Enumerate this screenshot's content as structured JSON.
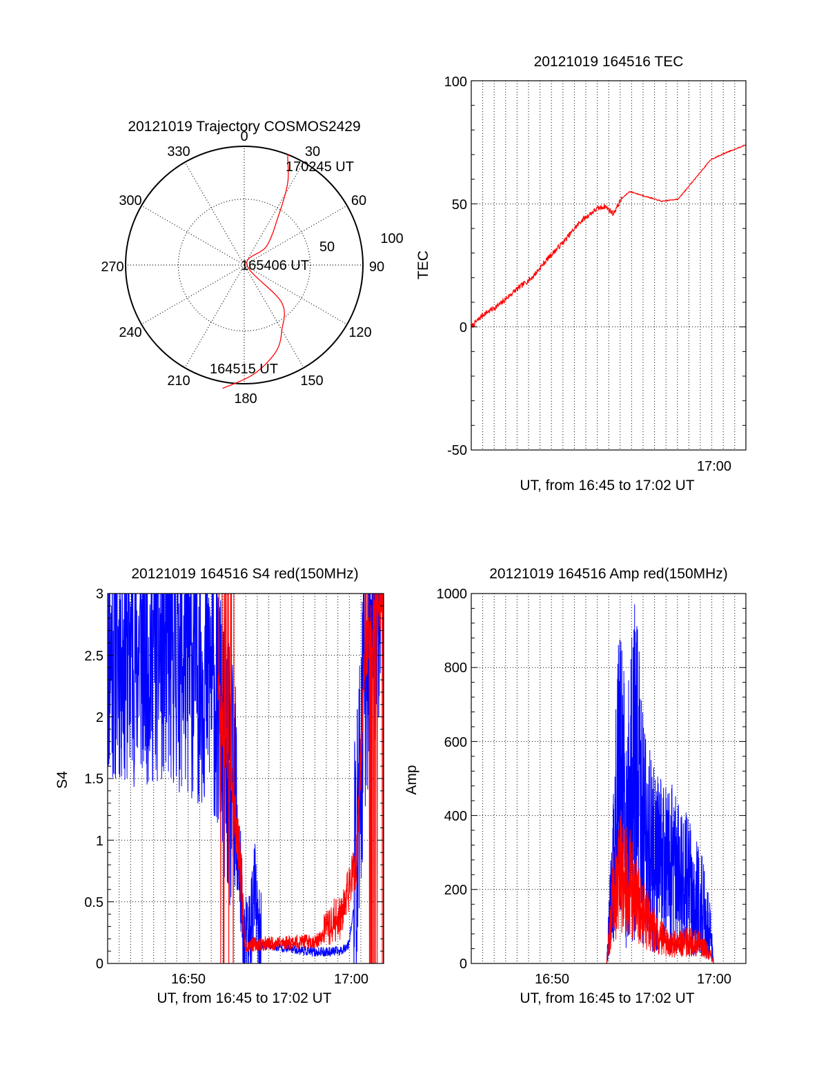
{
  "colors": {
    "red": "#ff0000",
    "blue": "#0000ff",
    "axis": "#000000",
    "grid": "#000000"
  },
  "chart_data": [
    {
      "id": "polar",
      "type": "polar",
      "title": "20121019 Trajectory COSMOS2429",
      "azimuth_labels": [
        "0",
        "30",
        "60",
        "90",
        "120",
        "150",
        "180",
        "210",
        "240",
        "270",
        "300",
        "330"
      ],
      "radius_labels": [
        "50",
        "100"
      ],
      "trajectory": {
        "points": [
          [
            190,
            95
          ],
          [
            175,
            83
          ],
          [
            160,
            70
          ],
          [
            150,
            57
          ],
          [
            135,
            40
          ],
          [
            90,
            2
          ],
          [
            50,
            22
          ],
          [
            35,
            45
          ],
          [
            28,
            70
          ],
          [
            22,
            88
          ],
          [
            22,
            90
          ]
        ],
        "annotations": [
          "164515 UT",
          "165406 UT",
          "170245 UT"
        ],
        "color": "red"
      }
    },
    {
      "id": "tec",
      "type": "line",
      "title": "20121019 164516 TEC",
      "ylabel": "TEC",
      "xlabel": "UT, from 16:45 to 17:02 UT",
      "xlim": [
        "16:45:16",
        "17:02:09"
      ],
      "ylim": [
        -50,
        100
      ],
      "yticks": [
        "-50",
        "0",
        "50",
        "100"
      ],
      "xticks": [
        "17:00"
      ],
      "grid": true,
      "series": [
        {
          "color": "red",
          "points": [
            [
              "16:45:16",
              0
            ],
            [
              "16:46:00",
              5
            ],
            [
              "16:47:00",
              9
            ],
            [
              "16:48:00",
              15
            ],
            [
              "16:49:00",
              20
            ],
            [
              "16:50:00",
              28
            ],
            [
              "16:51:00",
              35
            ],
            [
              "16:52:00",
              43
            ],
            [
              "16:53:00",
              48
            ],
            [
              "16:53:30",
              49
            ],
            [
              "16:54:00",
              46
            ],
            [
              "16:54:30",
              52
            ],
            [
              "16:55:00",
              55
            ],
            [
              "16:56:00",
              53
            ],
            [
              "16:57:00",
              51
            ],
            [
              "16:58:00",
              52
            ],
            [
              "16:59:00",
              60
            ],
            [
              "17:00:00",
              68
            ],
            [
              "17:01:00",
              71
            ],
            [
              "17:02:09",
              74
            ]
          ]
        }
      ]
    },
    {
      "id": "s4",
      "type": "line",
      "title": "20121019 164516 S4 red(150MHz)",
      "ylabel": "S4",
      "xlabel": "UT, from 16:45 to 17:02 UT",
      "xlim": [
        "16:45:16",
        "17:02:09"
      ],
      "ylim": [
        0,
        3
      ],
      "yticks": [
        "0",
        "0.5",
        "1",
        "1.5",
        "2",
        "2.5",
        "3"
      ],
      "xticks": [
        "16:50",
        "17:00"
      ],
      "grid": true,
      "series": [
        {
          "color": "blue",
          "profile": [
            [
              "16:45:16",
              2.2
            ],
            [
              "16:49:00",
              2.2
            ],
            [
              "16:51:40",
              2.0
            ],
            [
              "16:52:20",
              1.5
            ],
            [
              "16:52:50",
              1.05
            ],
            [
              "16:53:20",
              0.8
            ],
            [
              "16:53:35",
              0.15
            ],
            [
              "16:53:50",
              0.1
            ],
            [
              "16:54:15",
              0.6
            ],
            [
              "16:54:30",
              0.15
            ],
            [
              "16:56:00",
              0.13
            ],
            [
              "16:58:00",
              0.09
            ],
            [
              "16:59:30",
              0.1
            ],
            [
              "17:00:00",
              0.15
            ],
            [
              "17:00:30",
              0.6
            ],
            [
              "17:01:00",
              2.0
            ],
            [
              "17:02:09",
              3.0
            ]
          ]
        },
        {
          "color": "red",
          "profile": [
            [
              "16:52:00",
              2.2
            ],
            [
              "16:52:40",
              1.6
            ],
            [
              "16:53:20",
              0.9
            ],
            [
              "16:53:40",
              0.15
            ],
            [
              "16:56:00",
              0.17
            ],
            [
              "16:58:00",
              0.18
            ],
            [
              "16:59:30",
              0.3
            ],
            [
              "17:00:30",
              0.8
            ],
            [
              "17:01:00",
              2.5
            ],
            [
              "17:02:09",
              3.0
            ]
          ]
        }
      ]
    },
    {
      "id": "amp",
      "type": "line",
      "title": "20121019 164516 Amp red(150MHz)",
      "ylabel": "Amp",
      "xlabel": "UT, from 16:45 to 17:02 UT",
      "xlim": [
        "16:45:16",
        "17:02:09"
      ],
      "ylim": [
        0,
        1000
      ],
      "yticks": [
        "0",
        "200",
        "400",
        "600",
        "800",
        "1000"
      ],
      "xticks": [
        "16:50",
        "17:00"
      ],
      "grid": true,
      "series": [
        {
          "color": "blue",
          "profile": [
            [
              "16:45:16",
              0
            ],
            [
              "16:53:35",
              0
            ],
            [
              "16:54:00",
              250
            ],
            [
              "16:54:20",
              500
            ],
            [
              "16:54:50",
              380
            ],
            [
              "16:55:20",
              520
            ],
            [
              "16:55:50",
              380
            ],
            [
              "16:56:30",
              280
            ],
            [
              "16:57:30",
              260
            ],
            [
              "16:58:30",
              220
            ],
            [
              "16:59:30",
              150
            ],
            [
              "17:00:00",
              80
            ],
            [
              "17:00:10",
              0
            ],
            [
              "17:02:09",
              0
            ]
          ]
        },
        {
          "color": "red",
          "profile": [
            [
              "16:45:16",
              0
            ],
            [
              "16:53:35",
              0
            ],
            [
              "16:54:00",
              180
            ],
            [
              "16:54:30",
              250
            ],
            [
              "16:55:00",
              220
            ],
            [
              "16:55:30",
              160
            ],
            [
              "16:56:30",
              90
            ],
            [
              "16:57:30",
              50
            ],
            [
              "16:58:30",
              60
            ],
            [
              "16:59:30",
              50
            ],
            [
              "17:00:00",
              20
            ],
            [
              "17:00:10",
              0
            ],
            [
              "17:02:09",
              0
            ]
          ]
        }
      ]
    }
  ]
}
